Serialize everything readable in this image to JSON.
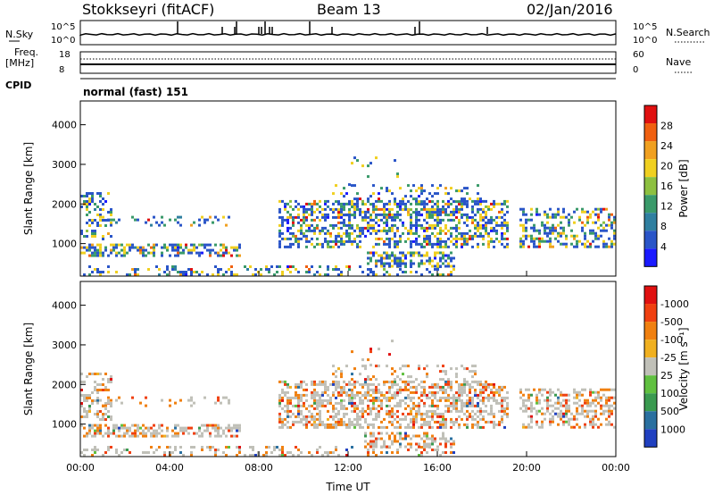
{
  "header": {
    "station": "Stokkseyri (fitACF)",
    "beam": "Beam 13",
    "date": "02/Jan/2016",
    "cpid": "normal (fast) 151"
  },
  "top_panels": {
    "nsky_label": "N.Sky",
    "nsearch_label": "N.Search",
    "freq_label_1": "Freq.",
    "freq_label_2": "[MHz]",
    "nave_label": "Nave",
    "cpid_label": "CPID",
    "nsky_ticks": [
      "10^5",
      "10^0"
    ],
    "nsearch_ticks": [
      "10^5",
      "10^0"
    ],
    "freq_ticks": [
      "18",
      "8"
    ],
    "nave_ticks": [
      "60",
      "0"
    ]
  },
  "chart_data": [
    {
      "type": "heatmap",
      "name": "power",
      "xlabel": "",
      "ylabel": "Slant Range [km]",
      "x_ticks": [
        "00:00",
        "04:00",
        "08:00",
        "12:00",
        "16:00",
        "20:00",
        "00:00"
      ],
      "y_ticks": [
        1000,
        2000,
        3000,
        4000
      ],
      "ylim": [
        180,
        4600
      ],
      "colorbar": {
        "label": "Power [dB]",
        "ticks": [
          "4",
          "8",
          "12",
          "16",
          "20",
          "24",
          "28"
        ],
        "colors": [
          "#1a1aff",
          "#2a55c8",
          "#2f7fa0",
          "#3a9a6a",
          "#8dc040",
          "#f0d020",
          "#f0a020",
          "#f06010",
          "#e01010"
        ]
      }
    },
    {
      "type": "heatmap",
      "name": "velocity",
      "xlabel": "Time UT",
      "ylabel": "Slant Range [km]",
      "x_ticks": [
        "00:00",
        "04:00",
        "08:00",
        "12:00",
        "16:00",
        "20:00",
        "00:00"
      ],
      "y_ticks": [
        1000,
        2000,
        3000,
        4000
      ],
      "ylim": [
        180,
        4600
      ],
      "colorbar": {
        "label": "Velocity [m s⁻¹]",
        "ticks": [
          "1000",
          "500",
          "100",
          "25",
          "-25",
          "-100",
          "-500",
          "-1000"
        ],
        "colors": [
          "#2040c0",
          "#2a70a0",
          "#3a9a50",
          "#60c040",
          "#c0c0b8",
          "#f0b020",
          "#f08010",
          "#f04010",
          "#e01010"
        ]
      }
    }
  ]
}
